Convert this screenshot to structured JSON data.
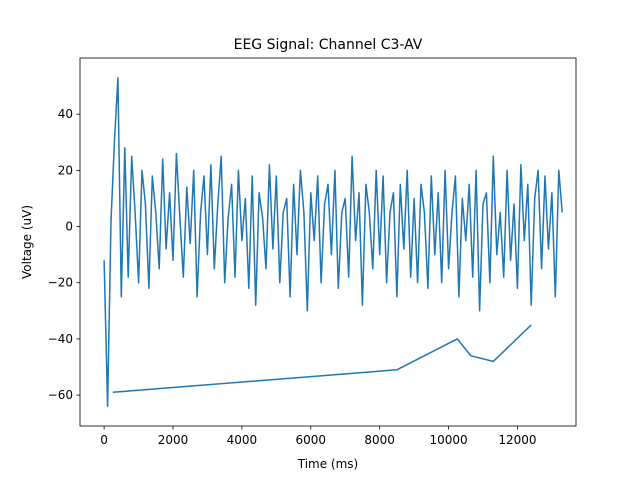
{
  "chart_data": {
    "type": "line",
    "title": "EEG Signal: Channel C3-AV",
    "xlabel": "Time (ms)",
    "ylabel": "Voltage (uV)",
    "xlim": [
      -700,
      13700
    ],
    "ylim": [
      -71,
      60
    ],
    "xticks": [
      0,
      2000,
      4000,
      6000,
      8000,
      10000,
      12000
    ],
    "yticks": [
      -60,
      -40,
      -20,
      0,
      20,
      40
    ],
    "grid": false,
    "series": [
      {
        "name": "",
        "color": "#1f77b4",
        "x_start": 0,
        "x_step": 100,
        "y": [
          -12,
          -64,
          2,
          30,
          53,
          -25,
          28,
          -18,
          25,
          5,
          -20,
          20,
          8,
          -22,
          18,
          5,
          -15,
          24,
          -8,
          12,
          -12,
          26,
          3,
          -18,
          14,
          -6,
          20,
          -25,
          5,
          18,
          -10,
          22,
          -15,
          8,
          25,
          -20,
          3,
          15,
          -18,
          20,
          -5,
          10,
          -22,
          18,
          -28,
          12,
          3,
          -15,
          22,
          -8,
          18,
          -20,
          5,
          10,
          -25,
          15,
          -10,
          20,
          5,
          -30,
          12,
          -5,
          18,
          -20,
          8,
          15,
          -10,
          20,
          -22,
          5,
          10,
          -18,
          25,
          -5,
          12,
          -28,
          15,
          5,
          -15,
          20,
          -10,
          18,
          -20,
          5,
          12,
          -25,
          15,
          -8,
          20,
          -18,
          10,
          -20,
          15,
          5,
          -22,
          18,
          -10,
          12,
          -20,
          20,
          -15,
          5,
          18,
          -25,
          10,
          -5,
          15,
          -18,
          20,
          -30,
          8,
          12,
          -20,
          25,
          -10,
          5,
          -18,
          20,
          -12,
          8,
          -22,
          22,
          -5,
          15,
          -28,
          10,
          20,
          -15,
          18,
          -8,
          12,
          -25,
          20,
          5
        ]
      },
      {
        "name": "",
        "color": "#1f77b4",
        "x": [
          250,
          8500,
          10250,
          10650,
          11300,
          12400
        ],
        "y": [
          -59,
          -51,
          -40,
          -46,
          -48,
          -35
        ]
      }
    ]
  }
}
